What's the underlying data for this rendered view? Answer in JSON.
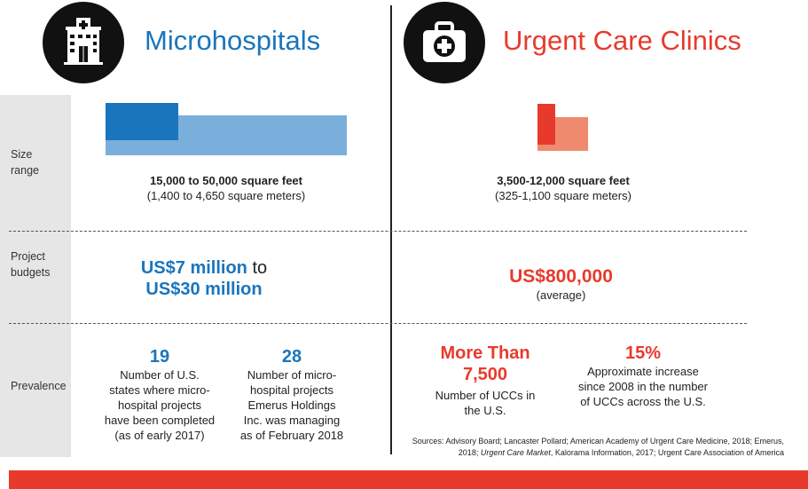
{
  "left": {
    "title": "Microhospitals",
    "icon": "hospital-building-icon",
    "size_primary": "15,000 to 50,000 square feet",
    "size_secondary": "(1,400 to 4,650 square meters)",
    "budget_line1_value": "US$7 million",
    "budget_line1_suffix": "to",
    "budget_line2": "US$30 million",
    "stat1_value": "19",
    "stat1_text": [
      "Number of U.S.",
      "states where micro-",
      "hospital projects",
      "have been completed",
      "(as of early 2017)"
    ],
    "stat2_value": "28",
    "stat2_text": [
      "Number of micro-",
      "hospital projects",
      "Emerus Holdings",
      "Inc. was managing",
      "as of February 2018"
    ]
  },
  "right": {
    "title": "Urgent Care Clinics",
    "icon": "medical-kit-icon",
    "size_primary": "3,500-12,000 square feet",
    "size_secondary": "(325-1,100 square meters)",
    "budget_value": "US$800,000",
    "budget_note": "(average)",
    "stat1_value_line1": "More Than",
    "stat1_value_line2": "7,500",
    "stat1_text": [
      "Number of UCCs in",
      "the U.S."
    ],
    "stat2_value": "15%",
    "stat2_text": [
      "Approximate increase",
      "since 2008 in the number",
      "of UCCs across the U.S."
    ]
  },
  "row_labels": {
    "size": [
      "Size",
      "range"
    ],
    "budget": [
      "Project",
      "budgets"
    ],
    "prevalence": "Prevalence"
  },
  "sources": {
    "line1": "Sources: Advisory Board; Lancaster Pollard; American Academy of Urgent Care Medicine, 2018; Emerus,",
    "line2_pre": "2018; ",
    "line2_italic": "Urgent Care Market",
    "line2_post": ", Kalorama Information, 2017; Urgent Care Association of America"
  },
  "colors": {
    "blue": "#1a75bc",
    "light_blue": "#7aaedb",
    "red": "#e83a2c",
    "salmon": "#f08a6e",
    "gray_column": "#e6e6e6"
  }
}
